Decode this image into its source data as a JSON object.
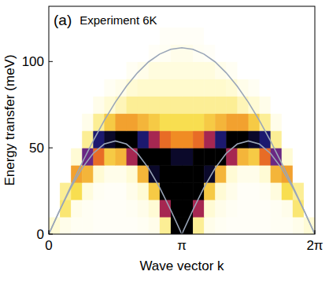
{
  "chart_data": {
    "type": "heatmap",
    "panel_label": "(a)",
    "title": "Experiment 6K",
    "x_label": "Wave vector k",
    "y_label": "Energy transfer (meV)",
    "xlim": [
      0,
      6.2832
    ],
    "ylim": [
      0,
      132
    ],
    "xticks": [
      0,
      {
        "value": 3.1416,
        "label": "π"
      },
      {
        "value": 6.2832,
        "label": "2π"
      }
    ],
    "yticks": [
      0,
      50,
      100
    ],
    "zlim": [
      0,
      1
    ],
    "x_bins": [
      0,
      0.2618,
      0.5236,
      0.7854,
      1.0472,
      1.309,
      1.5708,
      1.8326,
      2.0944,
      2.3562,
      2.618,
      2.8798,
      3.1416,
      3.4034,
      3.6652,
      3.927,
      4.1888,
      4.4506,
      4.7124,
      4.9742,
      5.236,
      5.4978,
      5.7596,
      6.0214,
      6.2832
    ],
    "y_bins": [
      0,
      10,
      20,
      30,
      40,
      50,
      60,
      70,
      80,
      90,
      100,
      110,
      120,
      130
    ],
    "cells": [
      [
        0.1,
        0.05,
        0.03,
        0.03,
        0.02,
        0.02,
        0.02,
        0.02,
        0.03,
        0.05,
        0.2,
        1.0,
        1.0,
        0.2,
        0.05,
        0.03,
        0.02,
        0.02,
        0.02,
        0.02,
        0.03,
        0.03,
        0.05,
        0.1
      ],
      [
        0,
        0.25,
        0.05,
        0.03,
        0.02,
        0.02,
        0.02,
        0.03,
        0.05,
        0.1,
        0.7,
        1.0,
        1.0,
        0.7,
        0.1,
        0.05,
        0.03,
        0.02,
        0.02,
        0.02,
        0.03,
        0.05,
        0.25,
        0
      ],
      [
        0,
        0.2,
        0.3,
        0.08,
        0.03,
        0.02,
        0.02,
        0.05,
        0.1,
        0.35,
        0.95,
        1.0,
        1.0,
        0.95,
        0.35,
        0.1,
        0.05,
        0.02,
        0.02,
        0.03,
        0.08,
        0.3,
        0.2,
        0
      ],
      [
        0,
        0,
        0.45,
        0.4,
        0.1,
        0.05,
        0.05,
        0.1,
        0.4,
        0.9,
        1.0,
        1.0,
        1.0,
        1.0,
        0.9,
        0.4,
        0.1,
        0.05,
        0.05,
        0.1,
        0.4,
        0.45,
        0,
        0
      ],
      [
        0,
        0,
        0.1,
        0.75,
        0.55,
        0.35,
        0.4,
        0.7,
        0.95,
        0.95,
        0.95,
        0.9,
        0.9,
        0.95,
        0.95,
        0.95,
        0.7,
        0.4,
        0.35,
        0.55,
        0.75,
        0.1,
        0,
        0
      ],
      [
        0,
        0,
        0,
        0.2,
        0.85,
        0.9,
        0.95,
        0.95,
        0.85,
        0.7,
        0.55,
        0.5,
        0.5,
        0.55,
        0.7,
        0.85,
        0.95,
        0.95,
        0.9,
        0.85,
        0.2,
        0,
        0,
        0
      ],
      [
        0,
        0,
        0,
        0.05,
        0.2,
        0.35,
        0.45,
        0.45,
        0.4,
        0.35,
        0.3,
        0.3,
        0.3,
        0.3,
        0.35,
        0.4,
        0.45,
        0.45,
        0.35,
        0.2,
        0.05,
        0,
        0,
        0
      ],
      [
        0,
        0,
        0,
        0,
        0.05,
        0.1,
        0.15,
        0.2,
        0.2,
        0.2,
        0.2,
        0.2,
        0.2,
        0.2,
        0.2,
        0.2,
        0.2,
        0.15,
        0.1,
        0.05,
        0,
        0,
        0,
        0
      ],
      [
        0,
        0,
        0,
        0,
        0,
        0.03,
        0.05,
        0.1,
        0.12,
        0.12,
        0.12,
        0.12,
        0.12,
        0.12,
        0.12,
        0.12,
        0.1,
        0.05,
        0.03,
        0,
        0,
        0,
        0,
        0
      ],
      [
        0,
        0,
        0,
        0,
        0,
        0,
        0,
        0.03,
        0.05,
        0.08,
        0.08,
        0.08,
        0.08,
        0.08,
        0.08,
        0.05,
        0.03,
        0,
        0,
        0,
        0,
        0,
        0,
        0
      ],
      [
        0,
        0,
        0,
        0,
        0,
        0,
        0,
        0,
        0,
        0.02,
        0.03,
        0.05,
        0.05,
        0.03,
        0.02,
        0,
        0,
        0,
        0,
        0,
        0,
        0,
        0,
        0
      ],
      [
        0,
        0,
        0,
        0,
        0,
        0,
        0,
        0,
        0,
        0,
        0.02,
        0.02,
        0.02,
        0.02,
        0,
        0,
        0,
        0,
        0,
        0,
        0,
        0,
        0,
        0
      ],
      [
        0,
        0,
        0,
        0,
        0,
        0,
        0,
        0,
        0,
        0,
        0,
        0,
        0,
        0,
        0,
        0,
        0,
        0,
        0,
        0,
        0,
        0,
        0,
        0
      ]
    ],
    "x": [
      0,
      0.2618,
      0.5236,
      0.7854,
      1.0472,
      1.309,
      1.5708,
      1.8326,
      2.0944,
      2.3562,
      2.618,
      2.8798,
      3.1416,
      3.4034,
      3.6652,
      3.927,
      4.1888,
      4.4506,
      4.7124,
      4.9742,
      5.236,
      5.4978,
      5.7596,
      6.0214,
      6.2832
    ],
    "series": [
      {
        "type": "line",
        "color": "#9aa6b8",
        "values": [
          0,
          14.0,
          27.0,
          38.2,
          46.8,
          52.2,
          54,
          52.2,
          46.8,
          38.2,
          27.0,
          14.0,
          0,
          14.0,
          27.0,
          38.2,
          46.8,
          52.2,
          54,
          52.2,
          46.8,
          38.2,
          27.0,
          14.0,
          0
        ]
      },
      {
        "type": "line",
        "color": "#9aa6b8",
        "values": [
          0,
          14.1,
          28.0,
          41.3,
          54,
          65.8,
          76.4,
          85.7,
          93.5,
          99.8,
          104.3,
          107.1,
          108,
          107.1,
          104.3,
          99.8,
          93.5,
          85.7,
          76.4,
          65.8,
          54,
          41.3,
          28.0,
          14.1,
          0
        ]
      }
    ]
  }
}
